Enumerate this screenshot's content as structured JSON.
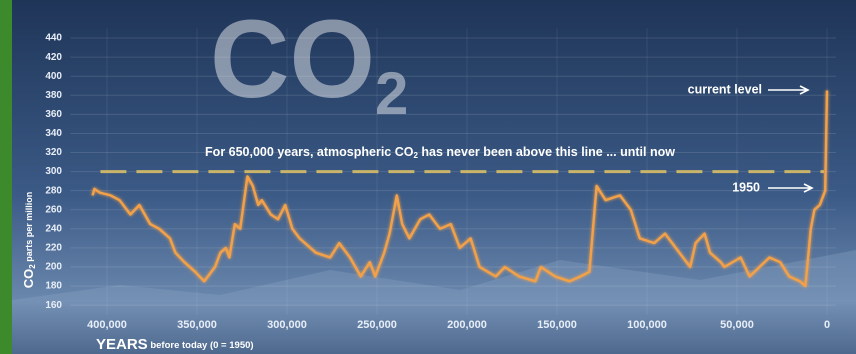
{
  "chart_data": {
    "type": "line",
    "watermark": "CO",
    "watermark_sub": "2",
    "annotation": {
      "before": "For 650,000 years, atmospheric CO",
      "sub": "2",
      "after": " has never been above this line ... until now"
    },
    "threshold": 300,
    "threshold_color": "#c9b46a",
    "callouts": {
      "current": "current level",
      "y1950": "1950"
    },
    "ylabel": {
      "main": "CO",
      "sub": "2",
      "rest": " parts per million"
    },
    "xlabel": {
      "main": "YEARS",
      "rest": " before today (0 = 1950)"
    },
    "color": "#f3a149",
    "x": [
      408000,
      407000,
      404000,
      398000,
      393000,
      387000,
      382000,
      376000,
      371000,
      365000,
      362000,
      357000,
      351000,
      346000,
      340000,
      337000,
      334000,
      332000,
      329000,
      326000,
      322000,
      319000,
      316000,
      314000,
      309000,
      305000,
      301000,
      297000,
      293000,
      284000,
      276000,
      271000,
      265000,
      262000,
      259000,
      254000,
      251000,
      246000,
      243000,
      239000,
      236000,
      232000,
      226000,
      221000,
      215000,
      209000,
      204000,
      198000,
      193000,
      184000,
      179000,
      171000,
      162000,
      159000,
      151000,
      143000,
      137000,
      132000,
      128000,
      123000,
      115000,
      109000,
      104000,
      96000,
      90000,
      76000,
      73000,
      68000,
      65000,
      59000,
      57000,
      48000,
      43000,
      32000,
      26000,
      21000,
      15000,
      12000,
      9000,
      7000,
      4000,
      2000,
      1000,
      0
    ],
    "values": [
      275,
      282,
      278,
      275,
      270,
      255,
      265,
      245,
      240,
      230,
      215,
      205,
      195,
      185,
      200,
      215,
      220,
      210,
      245,
      240,
      295,
      285,
      265,
      270,
      255,
      250,
      265,
      240,
      230,
      215,
      210,
      225,
      210,
      200,
      190,
      205,
      190,
      215,
      235,
      275,
      245,
      230,
      250,
      255,
      240,
      245,
      220,
      230,
      200,
      190,
      200,
      190,
      185,
      200,
      190,
      185,
      190,
      195,
      285,
      270,
      275,
      260,
      230,
      225,
      235,
      200,
      225,
      235,
      215,
      205,
      200,
      210,
      190,
      210,
      205,
      190,
      185,
      180,
      240,
      260,
      265,
      275,
      280,
      385
    ],
    "xlim": [
      412000,
      -5000
    ],
    "xticks": [
      {
        "value": 400000,
        "label": "400,000"
      },
      {
        "value": 350000,
        "label": "350,000"
      },
      {
        "value": 300000,
        "label": "300,000"
      },
      {
        "value": 250000,
        "label": "250,000"
      },
      {
        "value": 200000,
        "label": "200,000"
      },
      {
        "value": 150000,
        "label": "150,000"
      },
      {
        "value": 100000,
        "label": "100,000"
      },
      {
        "value": 50000,
        "label": "50,000"
      },
      0
    ],
    "ylim": [
      150,
      450
    ],
    "yticks": [
      160,
      180,
      200,
      220,
      240,
      260,
      280,
      300,
      320,
      340,
      360,
      380,
      400,
      420,
      440
    ],
    "grid": true
  }
}
